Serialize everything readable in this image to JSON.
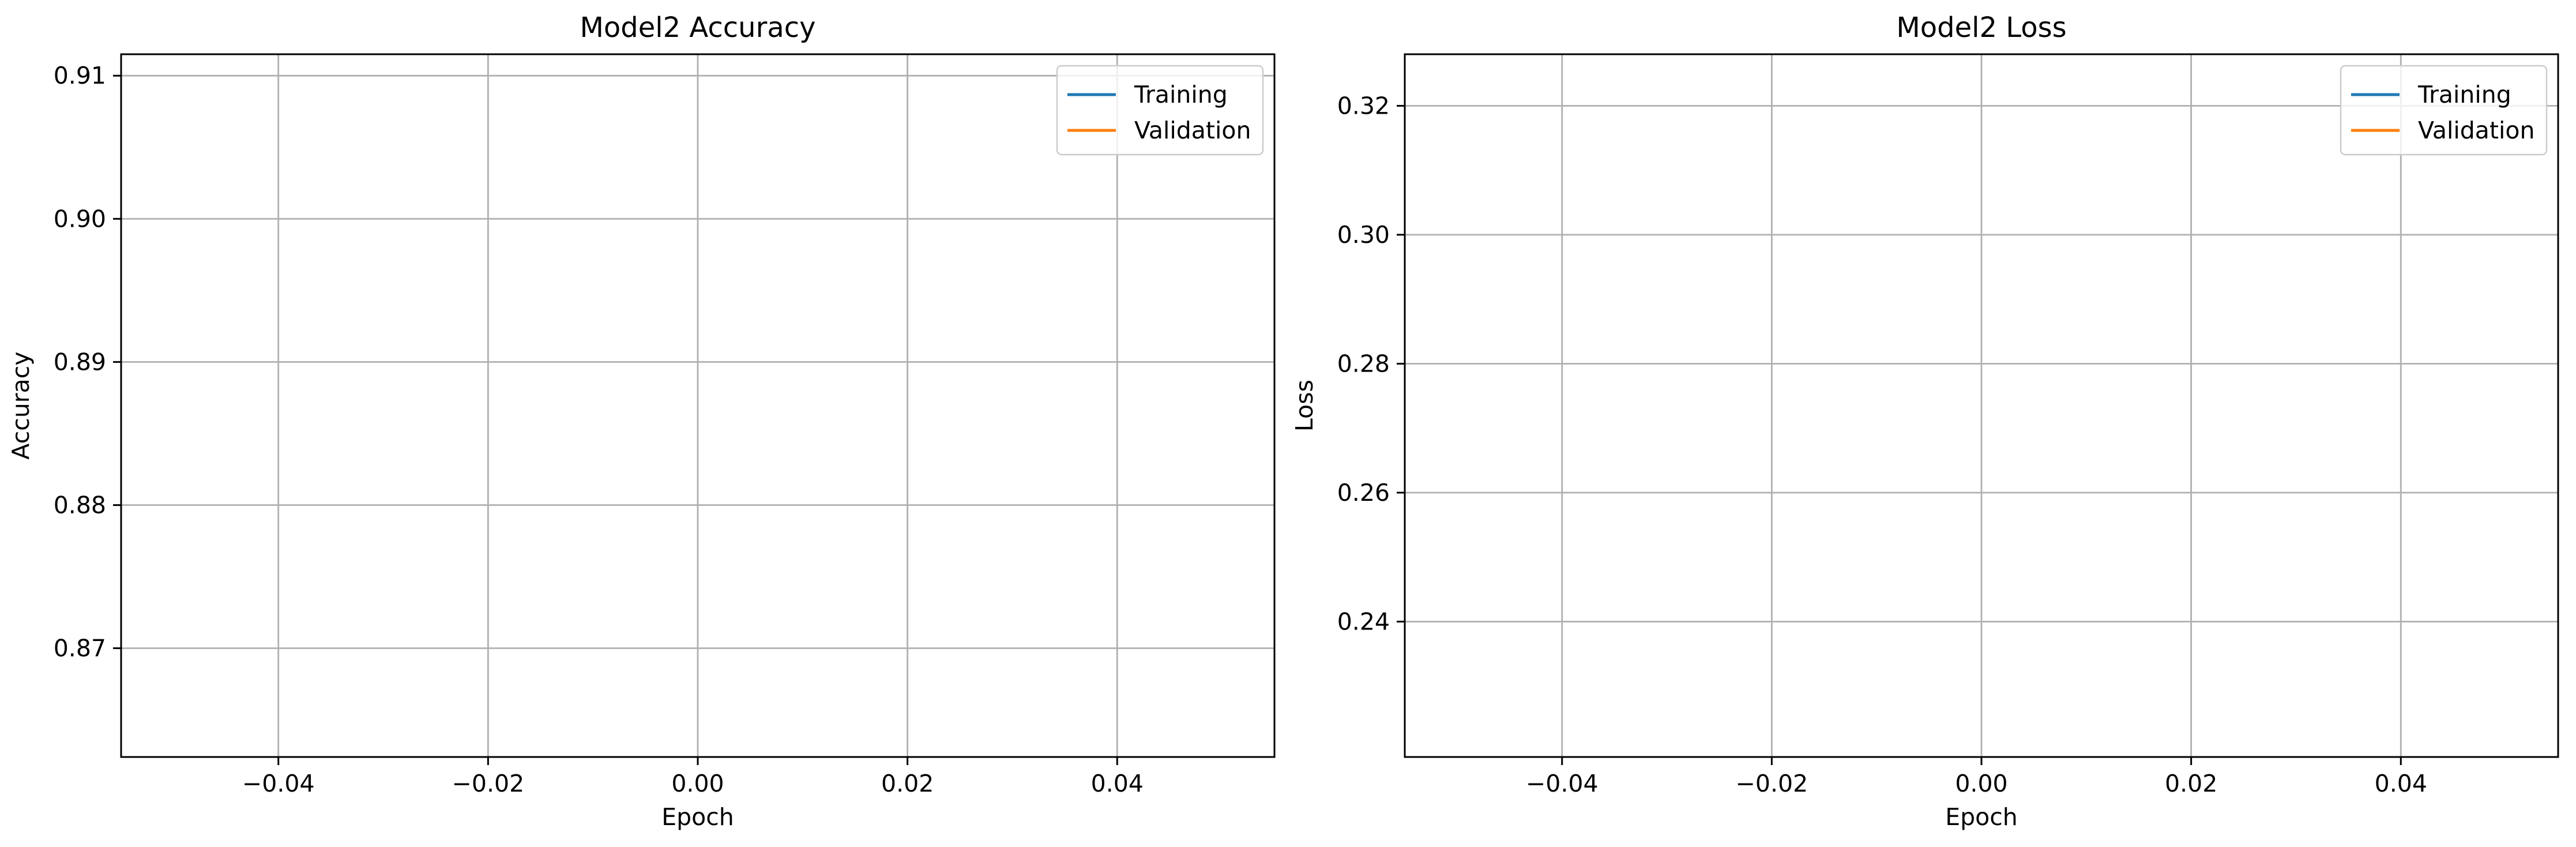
{
  "chart_data": [
    {
      "type": "line",
      "title": "Model2 Accuracy",
      "xlabel": "Epoch",
      "ylabel": "Accuracy",
      "xlim": [
        -0.055,
        0.055
      ],
      "ylim": [
        0.8624,
        0.9115
      ],
      "xticks": [
        -0.04,
        -0.02,
        0.0,
        0.02,
        0.04
      ],
      "xtick_labels": [
        "−0.04",
        "−0.02",
        "0.00",
        "0.02",
        "0.04"
      ],
      "yticks": [
        0.87,
        0.88,
        0.89,
        0.9,
        0.91
      ],
      "ytick_labels": [
        "0.87",
        "0.88",
        "0.89",
        "0.90",
        "0.91"
      ],
      "grid": true,
      "legend_position": "top-right",
      "series": [
        {
          "name": "Training",
          "color": "#1f77b4",
          "x": [],
          "y": []
        },
        {
          "name": "Validation",
          "color": "#ff7f0e",
          "x": [],
          "y": []
        }
      ]
    },
    {
      "type": "line",
      "title": "Model2 Loss",
      "xlabel": "Epoch",
      "ylabel": "Loss",
      "xlim": [
        -0.055,
        0.055
      ],
      "ylim": [
        0.219,
        0.328
      ],
      "xticks": [
        -0.04,
        -0.02,
        0.0,
        0.02,
        0.04
      ],
      "xtick_labels": [
        "−0.04",
        "−0.02",
        "0.00",
        "0.02",
        "0.04"
      ],
      "yticks": [
        0.24,
        0.26,
        0.28,
        0.3,
        0.32
      ],
      "ytick_labels": [
        "0.24",
        "0.26",
        "0.28",
        "0.30",
        "0.32"
      ],
      "grid": true,
      "legend_position": "top-right",
      "series": [
        {
          "name": "Training",
          "color": "#1f77b4",
          "x": [],
          "y": []
        },
        {
          "name": "Validation",
          "color": "#ff7f0e",
          "x": [],
          "y": []
        }
      ]
    }
  ]
}
